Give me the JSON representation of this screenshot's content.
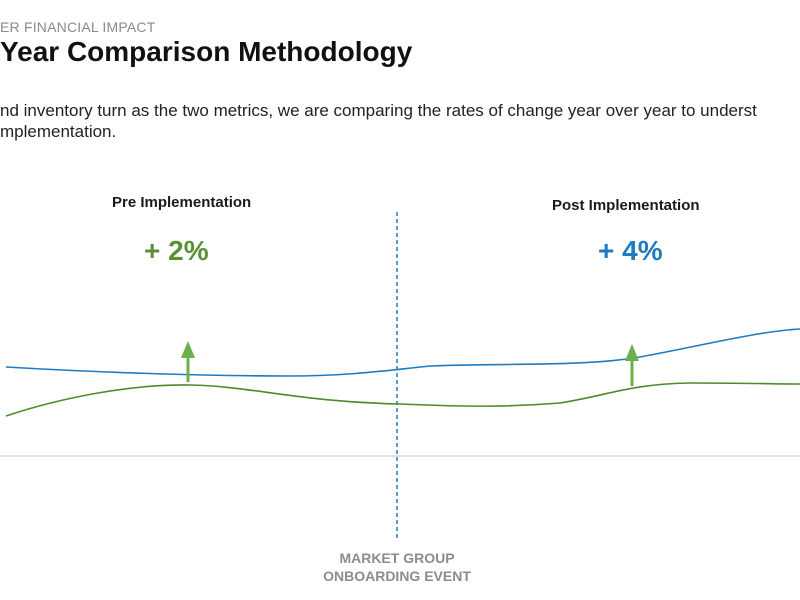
{
  "header": {
    "eyebrow": "ER FINANCIAL IMPACT",
    "title": "Year Comparison Methodology",
    "description_line1": "nd inventory turn as the two metrics, we are comparing the rates of change year over year to underst",
    "description_line2": "mplementation."
  },
  "pre": {
    "label": "Pre Implementation",
    "change": "+ 2%",
    "color": "#5a8f36"
  },
  "post": {
    "label": "Post Implementation",
    "change": "+ 4%",
    "color": "#1e7bbf"
  },
  "event": {
    "line1": "MARKET GROUP",
    "line2": "ONBOARDING EVENT",
    "color": "#1e7bbf"
  },
  "colors": {
    "blue_line": "#1e7bbf",
    "green_line": "#4e8a2c",
    "arrow": "#6ab04c",
    "baseline": "#cfcfcf"
  }
}
